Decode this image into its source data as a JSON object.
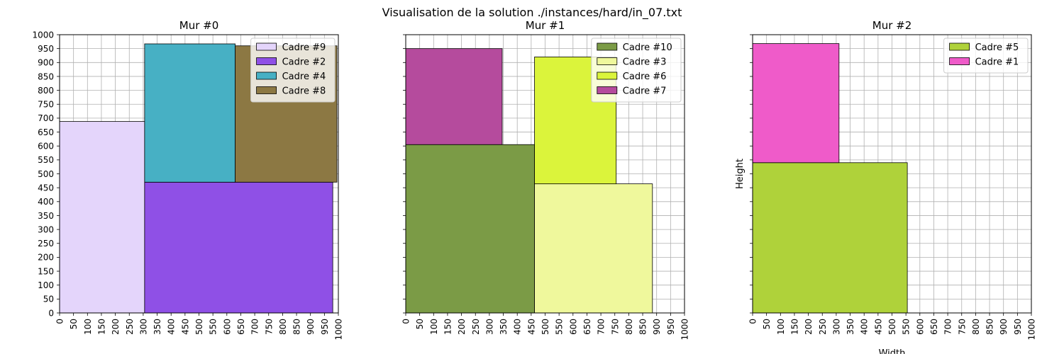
{
  "title": "Visualisation de la solution ./instances/hard/in_07.txt",
  "colors": {
    "grid": "#b0b0b0",
    "rect_edge": "#000000",
    "legend_edge": "#cccccc"
  },
  "chart_data": [
    {
      "type": "rectangles",
      "title": "Mur #0",
      "xlabel": "",
      "ylabel": "",
      "xlim": [
        0,
        1000
      ],
      "ylim": [
        0,
        1000
      ],
      "ticks": {
        "step": 50,
        "show_y_labels": true
      },
      "grid": true,
      "legend": "top-right",
      "rects": [
        {
          "name": "Cadre #9",
          "x": 0,
          "y": 0,
          "w": 305,
          "h": 688,
          "color": "#e4d5fb"
        },
        {
          "name": "Cadre #2",
          "x": 305,
          "y": 0,
          "w": 675,
          "h": 470,
          "color": "#8f50e6"
        },
        {
          "name": "Cadre #4",
          "x": 305,
          "y": 470,
          "w": 325,
          "h": 497,
          "color": "#47b0c4"
        },
        {
          "name": "Cadre #8",
          "x": 630,
          "y": 470,
          "w": 365,
          "h": 490,
          "color": "#8c7843"
        }
      ]
    },
    {
      "type": "rectangles",
      "title": "Mur #1",
      "xlabel": "",
      "ylabel": "",
      "xlim": [
        0,
        1000
      ],
      "ylim": [
        0,
        1000
      ],
      "ticks": {
        "step": 50,
        "show_y_labels": false
      },
      "grid": true,
      "legend": "top-right",
      "rects": [
        {
          "name": "Cadre #10",
          "x": 0,
          "y": 0,
          "w": 462,
          "h": 605,
          "color": "#7b9b46"
        },
        {
          "name": "Cadre #3",
          "x": 462,
          "y": 0,
          "w": 423,
          "h": 464,
          "color": "#eff89c"
        },
        {
          "name": "Cadre #6",
          "x": 462,
          "y": 464,
          "w": 293,
          "h": 456,
          "color": "#dbf43b"
        },
        {
          "name": "Cadre #7",
          "x": 0,
          "y": 605,
          "w": 346,
          "h": 345,
          "color": "#b54b9d"
        }
      ]
    },
    {
      "type": "rectangles",
      "title": "Mur #2",
      "xlabel": "Width",
      "ylabel": "Height",
      "xlim": [
        0,
        1000
      ],
      "ylim": [
        0,
        1000
      ],
      "ticks": {
        "step": 50,
        "show_y_labels": false
      },
      "grid": true,
      "legend": "top-right",
      "rects": [
        {
          "name": "Cadre #5",
          "x": 0,
          "y": 0,
          "w": 555,
          "h": 540,
          "color": "#afd23a"
        },
        {
          "name": "Cadre #1",
          "x": 0,
          "y": 540,
          "w": 310,
          "h": 428,
          "color": "#ef5bc9"
        }
      ]
    }
  ]
}
